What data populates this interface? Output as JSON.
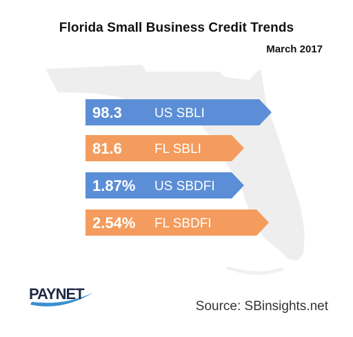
{
  "chart_data": {
    "type": "bar",
    "title": "Florida Small Business Credit Trends",
    "subtitle": "March 2017",
    "items": [
      {
        "value": "98.3",
        "label": "US SBLI",
        "numeric": 98.3,
        "color": "#5b8ed6"
      },
      {
        "value": "81.6",
        "label": "FL SBLI",
        "numeric": 81.6,
        "color": "#f39c5d"
      },
      {
        "value": "1.87%",
        "label": "US SBDFI",
        "numeric": 1.87,
        "color": "#5b8ed6"
      },
      {
        "value": "2.54%",
        "label": "FL SBDFI",
        "numeric": 2.54,
        "color": "#f39c5d"
      }
    ]
  },
  "logo_text": "PAYNET",
  "source": "Source: SBinsights.net",
  "colors": {
    "us": "#5b8ed6",
    "fl": "#f39c5d",
    "map": "#ededed"
  }
}
